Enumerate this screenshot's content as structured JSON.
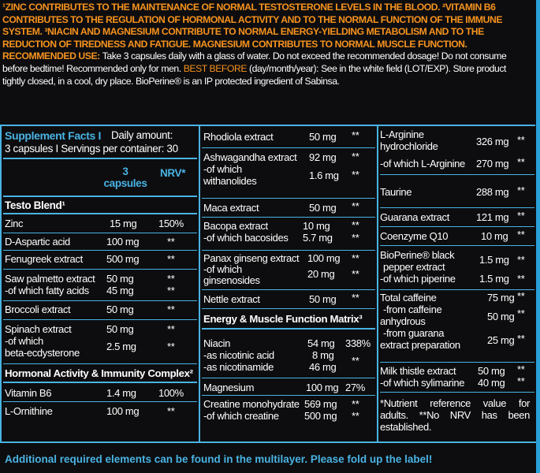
{
  "top": {
    "claims": "¹ZINC CONTRIBUTES TO THE MAINTENANCE OF NORMAL TESTOSTERONE LEVELS IN THE BLOOD. ²VITAMIN B6 CONTRIBUTES TO THE REGULATION OF HORMONAL ACTIVITY AND TO THE NORMAL FUNCTION OF THE IMMUNE SYSTEM. ³NIACIN AND MAGNESIUM CONTRIBUTE TO NORMAL ENERGY-YIELDING METABOLISM AND TO THE REDUCTION OF TIREDNESS AND FATIGUE. MAGNESIUM CONTRIBUTES TO NORMAL MUSCLE FUNCTION.",
    "use_label": "RECOMMENDED USE:",
    "use_text": "Take 3 capsules daily with a glass of water. Do not exceed the recommended dosage! Do not consume before bedtime! Recommended only for men.",
    "best_label": "BEST BEFORE",
    "best_text": "(day/month/year): See in the white field (LOT/EXP). Store product tightly closed, in a cool, dry place. BioPerine® is an IP protected ingredient of Sabinsa."
  },
  "facts": {
    "title": "Supplement Facts I",
    "daily": "Daily amount:",
    "servings": "3 capsules I Servings per container: 30",
    "col_capsules": "3 capsules",
    "col_nrv": "NRV*"
  },
  "col1": {
    "testo_head": "Testo Blend¹",
    "rows": [
      {
        "name": "Zinc",
        "amount": "15 mg",
        "nrv": "150%"
      },
      {
        "name": "D-Aspartic acid",
        "amount": "100 mg",
        "nrv": "**"
      },
      {
        "name": "Fenugreek extract",
        "amount": "500 mg",
        "nrv": "**"
      },
      {
        "name": "Saw palmetto extract",
        "amount": "50 mg",
        "nrv": "**",
        "sub": "-of which fatty acids",
        "sub_amount": "45 mg",
        "sub_nrv": "**"
      },
      {
        "name": "Broccoli extract",
        "amount": "50 mg",
        "nrv": "**"
      },
      {
        "name": "Spinach extract",
        "amount": "50 mg",
        "nrv": "**",
        "sub": "-of which",
        "sub2": "beta-ecdysterone",
        "sub_amount": "2.5 mg",
        "sub_nrv": "**"
      }
    ],
    "hormonal_head": "Hormonal Activity & Immunity Complex²",
    "rows2": [
      {
        "name": "Vitamin B6",
        "amount": "1.4 mg",
        "nrv": "100%"
      },
      {
        "name": "L-Ornithine",
        "amount": "100 mg",
        "nrv": "**"
      }
    ]
  },
  "col2": {
    "rows": [
      {
        "name": "Rhodiola extract",
        "amount": "50 mg",
        "nrv": "**"
      },
      {
        "name": "Ashwagandha extract",
        "amount": "92 mg",
        "nrv": "**",
        "sub": "-of which",
        "sub2": "withanolides",
        "sub_amount": "1.6 mg",
        "sub_nrv": "**"
      },
      {
        "name": "Maca extract",
        "amount": "50 mg",
        "nrv": "**"
      },
      {
        "name": "Bacopa extract",
        "amount": "10 mg",
        "nrv": "**",
        "sub": "-of which bacosides",
        "sub_amount": "5.7 mg",
        "sub_nrv": "**"
      },
      {
        "name": "Panax ginseng extract",
        "amount": "100 mg",
        "nrv": "**",
        "sub": "-of which",
        "sub2": "ginsenosides",
        "sub_amount": "20 mg",
        "sub_nrv": "**"
      },
      {
        "name": "Nettle extract",
        "amount": "50 mg",
        "nrv": "**"
      }
    ],
    "energy_head": "Energy & Muscle Function Matrix³",
    "niacin": {
      "name": "Niacin",
      "amount": "54 mg",
      "nrv": "338%",
      "a": "-as nicotinic acid",
      "a_amount": "8 mg",
      "b": "-as nicotinamide",
      "b_amount": "46 mg",
      "b_nrv": "**"
    },
    "magnesium": {
      "name": "Magnesium",
      "amount": "100 mg",
      "nrv": "27%"
    },
    "creatine": {
      "name": "Creatine monohydrate",
      "amount": "569 mg",
      "nrv": "**",
      "sub": "-of which creatine",
      "sub_amount": "500 mg",
      "sub_nrv": "**"
    }
  },
  "col3": {
    "arginine": {
      "name": "L-Arginine",
      "name2": "hydrochloride",
      "amount": "326 mg",
      "nrv": "**",
      "sub": "-of which L-Arginine",
      "sub_amount": "270 mg",
      "sub_nrv": "**"
    },
    "taurine": {
      "name": "Taurine",
      "amount": "288 mg",
      "nrv": "**"
    },
    "guarana": {
      "name": "Guarana extract",
      "amount": "121 mg",
      "nrv": "**"
    },
    "coq10": {
      "name": "Coenzyme Q10",
      "amount": "10 mg",
      "nrv": "**"
    },
    "bioperine": {
      "name": "BioPerine® black",
      "name2": "pepper extract",
      "amount": "1.5 mg",
      "nrv": "**",
      "sub": "-of which piperine",
      "sub_amount": "1.5 mg",
      "sub_nrv": "**"
    },
    "caffeine": {
      "name": "Total caffeine",
      "amount": "75 mg",
      "nrv": "**",
      "a": "-from caffeine",
      "a2": "anhydrous",
      "a_amount": "50 mg",
      "a_nrv": "**",
      "b": "-from guarana",
      "b2": "extract preparation",
      "b_amount": "25 mg",
      "b_nrv": "**"
    },
    "milk": {
      "name": "Milk thistle extract",
      "amount": "50 mg",
      "nrv": "**",
      "sub": "-of which sylimarine",
      "sub_amount": "40 mg",
      "sub_nrv": "**"
    },
    "note": "*Nutrient reference value for adults. **No NRV has been established."
  },
  "footer": "Additional required elements can be found in the multilayer. Please fold up the label!",
  "colors": {
    "accent": "#49b3e3",
    "orange": "#f7931e",
    "background": "#0d0d0f"
  }
}
